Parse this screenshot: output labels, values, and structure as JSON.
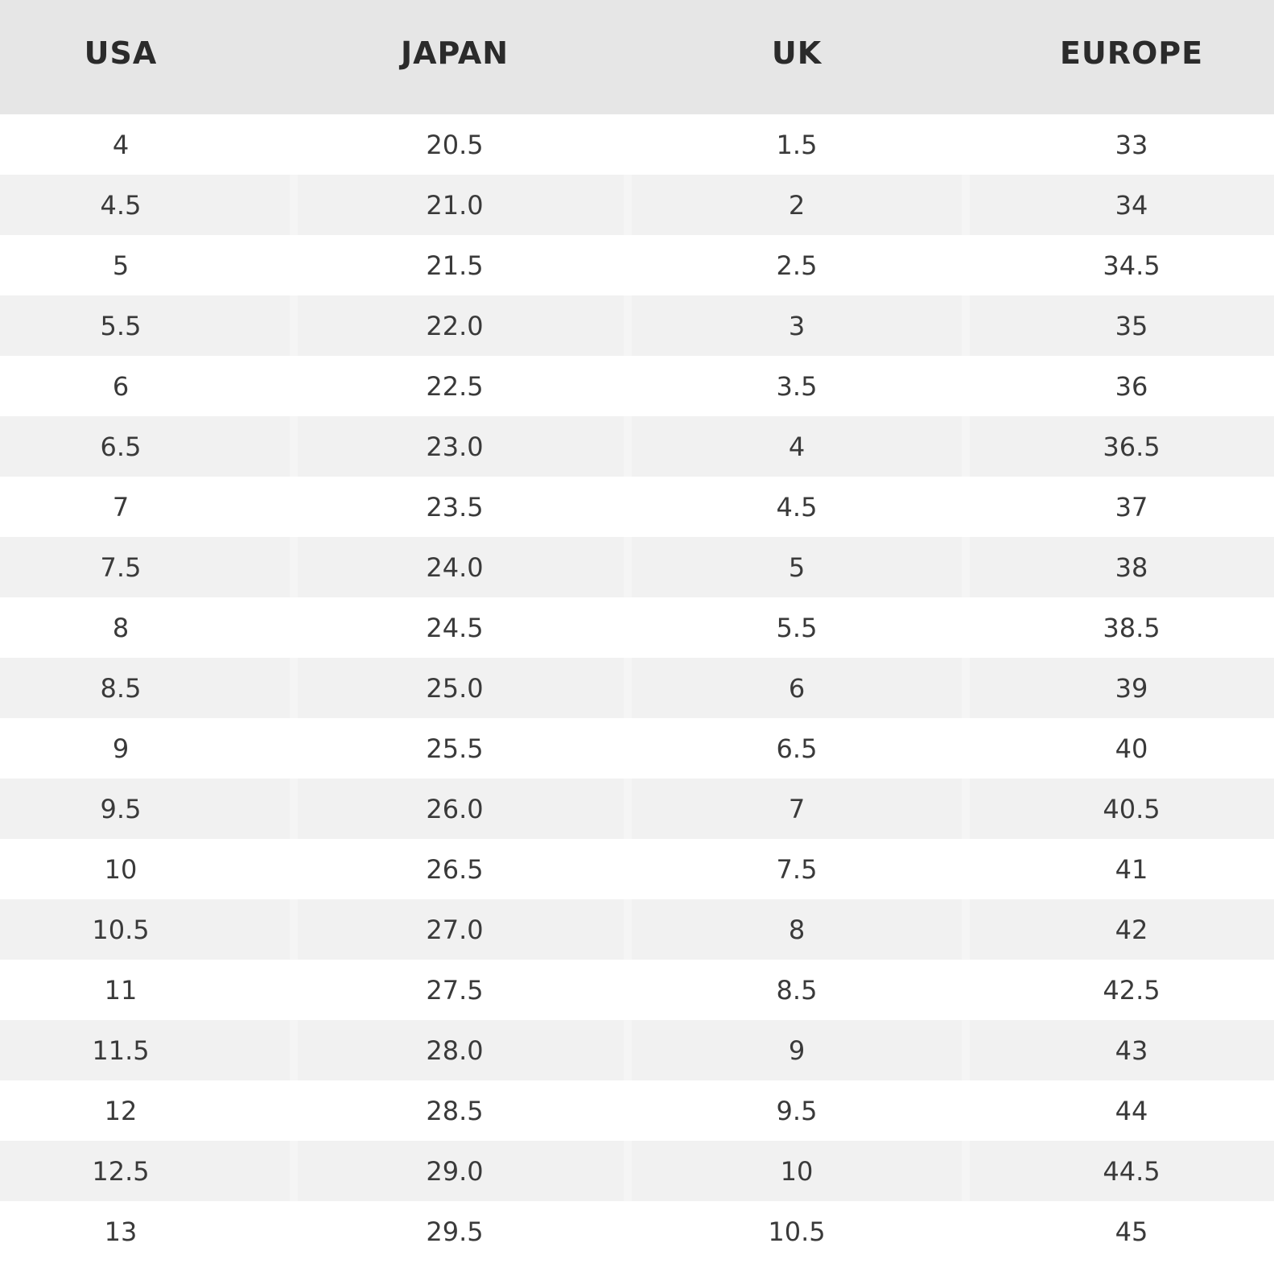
{
  "table": {
    "headers": {
      "usa": "USA",
      "japan": "JAPAN",
      "uk": "UK",
      "europe": "EUROPE"
    },
    "rows": [
      {
        "usa": "4",
        "japan": "20.5",
        "uk": "1.5",
        "europe": "33"
      },
      {
        "usa": "4.5",
        "japan": "21.0",
        "uk": "2",
        "europe": "34"
      },
      {
        "usa": "5",
        "japan": "21.5",
        "uk": "2.5",
        "europe": "34.5"
      },
      {
        "usa": "5.5",
        "japan": "22.0",
        "uk": "3",
        "europe": "35"
      },
      {
        "usa": "6",
        "japan": "22.5",
        "uk": "3.5",
        "europe": "36"
      },
      {
        "usa": "6.5",
        "japan": "23.0",
        "uk": "4",
        "europe": "36.5"
      },
      {
        "usa": "7",
        "japan": "23.5",
        "uk": "4.5",
        "europe": "37"
      },
      {
        "usa": "7.5",
        "japan": "24.0",
        "uk": "5",
        "europe": "38"
      },
      {
        "usa": "8",
        "japan": "24.5",
        "uk": "5.5",
        "europe": "38.5"
      },
      {
        "usa": "8.5",
        "japan": "25.0",
        "uk": "6",
        "europe": "39"
      },
      {
        "usa": "9",
        "japan": "25.5",
        "uk": "6.5",
        "europe": "40"
      },
      {
        "usa": "9.5",
        "japan": "26.0",
        "uk": "7",
        "europe": "40.5"
      },
      {
        "usa": "10",
        "japan": "26.5",
        "uk": "7.5",
        "europe": "41"
      },
      {
        "usa": "10.5",
        "japan": "27.0",
        "uk": "8",
        "europe": "42"
      },
      {
        "usa": "11",
        "japan": "27.5",
        "uk": "8.5",
        "europe": "42.5"
      },
      {
        "usa": "11.5",
        "japan": "28.0",
        "uk": "9",
        "europe": "43"
      },
      {
        "usa": "12",
        "japan": "28.5",
        "uk": "9.5",
        "europe": "44"
      },
      {
        "usa": "12.5",
        "japan": "29.0",
        "uk": "10",
        "europe": "44.5"
      },
      {
        "usa": "13",
        "japan": "29.5",
        "uk": "10.5",
        "europe": "45"
      }
    ]
  },
  "colors": {
    "header_background": "#e6e6e6",
    "stripe_background": "#f1f1f1",
    "row_background": "#ffffff",
    "text": "#3a3a3a"
  }
}
